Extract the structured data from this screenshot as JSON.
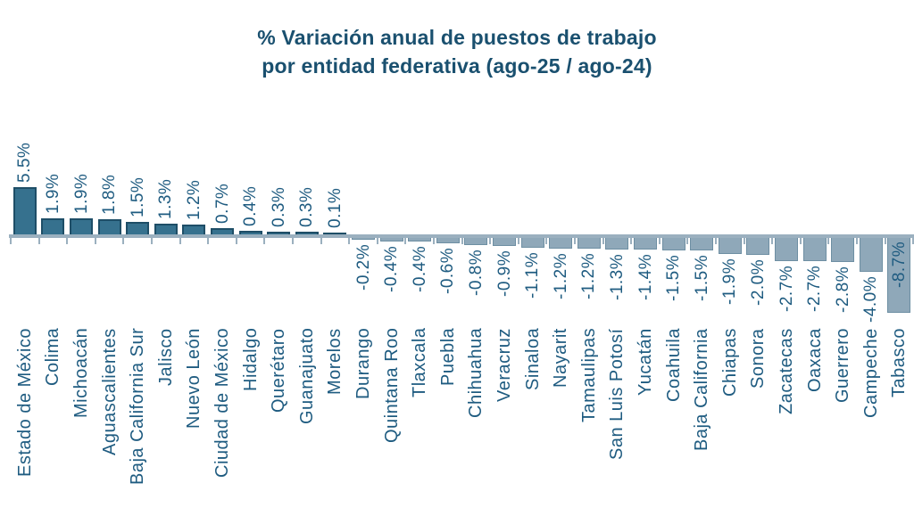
{
  "title": {
    "line1": "% Variación anual de puestos de trabajo",
    "line2": "por entidad federativa (ago-25 / ago-24)"
  },
  "chart_data": {
    "type": "bar",
    "title": "% Variación anual de puestos de trabajo por entidad federativa (ago-25 / ago-24)",
    "value_suffix": "%",
    "value_decimals": 1,
    "categories": [
      "Estado de México",
      "Colima",
      "Michoacán",
      "Aguascalientes",
      "Baja California Sur",
      "Jalisco",
      "Nuevo León",
      "Ciudad de México",
      "Hidalgo",
      "Querétaro",
      "Guanajuato",
      "Morelos",
      "Durango",
      "Quintana Roo",
      "Tlaxcala",
      "Puebla",
      "Chihuahua",
      "Veracruz",
      "Sinaloa",
      "Nayarit",
      "Tamaulipas",
      "San Luis Potosí",
      "Yucatán",
      "Coahuila",
      "Baja California",
      "Chiapas",
      "Sonora",
      "Zacatecas",
      "Oaxaca",
      "Guerrero",
      "Campeche",
      "Tabasco"
    ],
    "values": [
      5.5,
      1.9,
      1.9,
      1.8,
      1.5,
      1.3,
      1.2,
      0.7,
      0.4,
      0.3,
      0.3,
      0.1,
      -0.2,
      -0.4,
      -0.4,
      -0.6,
      -0.8,
      -0.9,
      -1.1,
      -1.2,
      -1.2,
      -1.3,
      -1.4,
      -1.5,
      -1.5,
      -1.9,
      -2.0,
      -2.7,
      -2.7,
      -2.8,
      -4.0,
      -8.7
    ],
    "value_labels": [
      "5.5%",
      "1.9%",
      "1.9%",
      "1.8%",
      "1.5%",
      "1.3%",
      "1.2%",
      "0.7%",
      "0.4%",
      "0.3%",
      "0.3%",
      "0.1%",
      "-0.2%",
      "-0.4%",
      "-0.4%",
      "-0.6%",
      "-0.8%",
      "-0.9%",
      "-1.1%",
      "-1.2%",
      "-1.2%",
      "-1.3%",
      "-1.4%",
      "-1.5%",
      "-1.5%",
      "-1.9%",
      "-2.0%",
      "-2.7%",
      "-2.7%",
      "-2.8%",
      "-4.0%",
      "-8.7%"
    ],
    "ylim": [
      -8.7,
      5.5
    ],
    "grid": false,
    "legend": false,
    "category_label_rotation_deg": 90,
    "value_label_rotation_deg": 90,
    "baseline": 0
  },
  "colors": {
    "background": "#ffffff",
    "title_text": "#1a506f",
    "label_text": "#1e5b80",
    "positive_bar_fill": "#36718e",
    "positive_bar_border": "#1e4e67",
    "negative_bar_fill": "#8fa8b9",
    "negative_bar_border": "#6e8fa3",
    "axis_line": "#9bb0bf"
  }
}
